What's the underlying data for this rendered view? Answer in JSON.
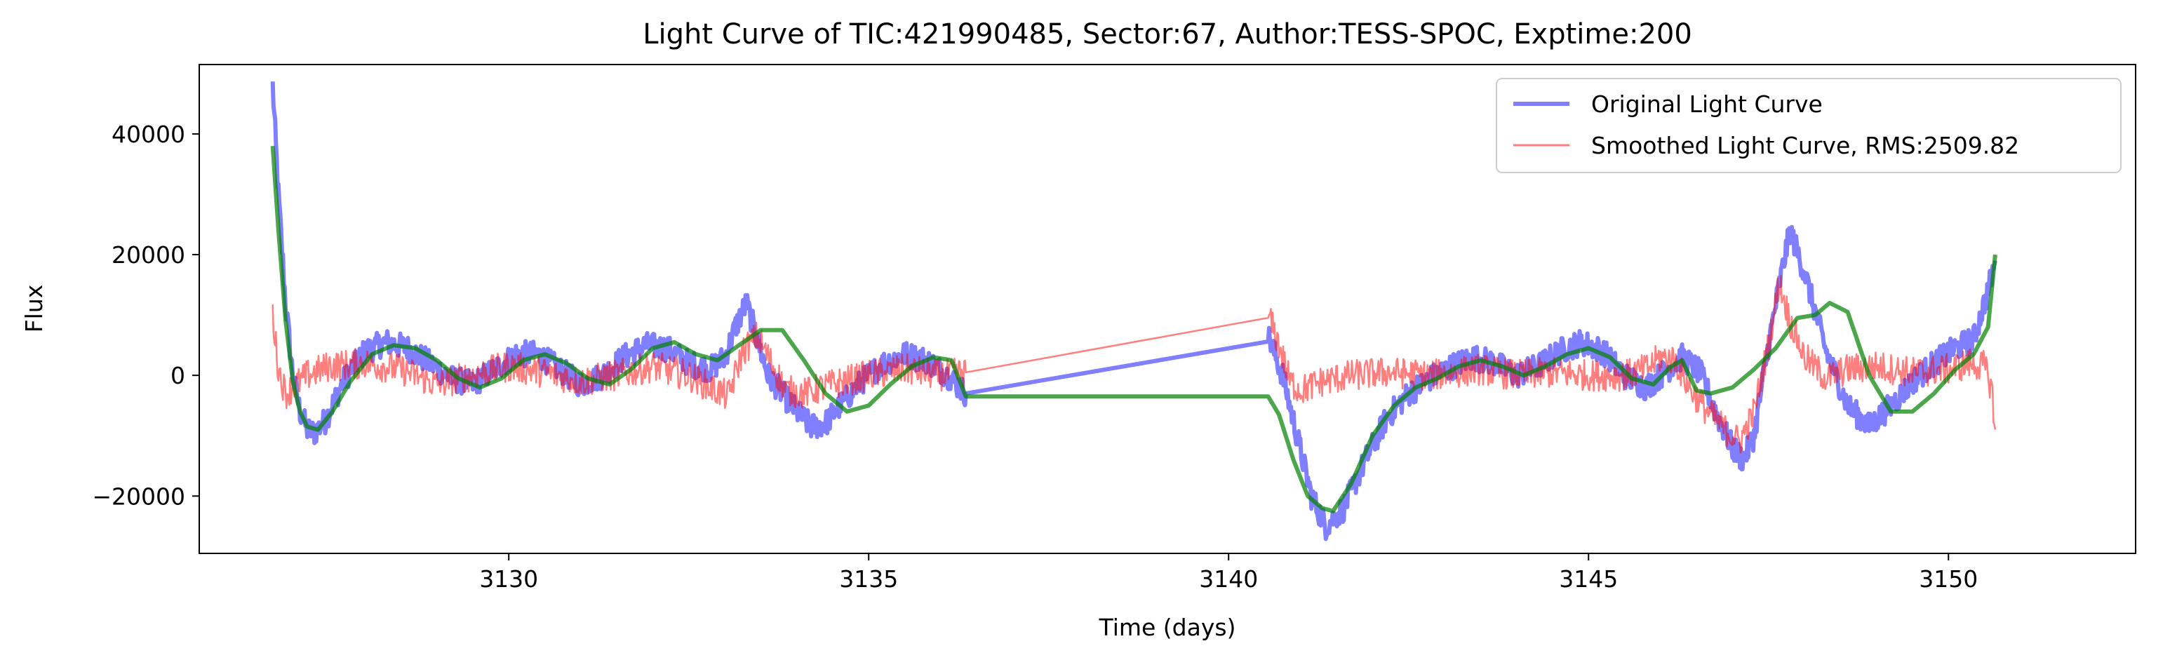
{
  "chart_data": {
    "type": "line",
    "title": "Light Curve of TIC:421990485, Sector:67, Author:TESS-SPOC, Exptime:200",
    "xlabel": "Time (days)",
    "ylabel": "Flux",
    "xlim": [
      3125.7,
      3152.6
    ],
    "ylim": [
      -29500,
      51500
    ],
    "xticks": [
      3130,
      3135,
      3140,
      3145,
      3150
    ],
    "yticks": [
      -20000,
      0,
      20000,
      40000
    ],
    "ytick_labels": [
      "−20000",
      "0",
      "20000",
      "40000"
    ],
    "grid": false,
    "legend_position": "top-right",
    "series": [
      {
        "name": "Original Light Curve",
        "color": "#0000ff",
        "opacity": 0.5,
        "noise": 2200,
        "x": [
          3126.72,
          3126.8,
          3126.9,
          3127.0,
          3127.1,
          3127.2,
          3127.3,
          3127.45,
          3127.7,
          3128.0,
          3128.3,
          3128.6,
          3128.9,
          3129.2,
          3129.5,
          3129.8,
          3130.1,
          3130.4,
          3130.7,
          3131.0,
          3131.3,
          3131.6,
          3131.9,
          3132.2,
          3132.5,
          3132.8,
          3133.0,
          3133.15,
          3133.3,
          3133.45,
          3133.6,
          3133.8,
          3134.0,
          3134.2,
          3134.4,
          3134.6,
          3134.9,
          3135.2,
          3135.5,
          3135.8,
          3136.1,
          3136.35,
          3140.55,
          3140.75,
          3140.95,
          3141.15,
          3141.35,
          3141.6,
          3141.9,
          3142.2,
          3142.5,
          3142.8,
          3143.1,
          3143.4,
          3143.7,
          3144.0,
          3144.3,
          3144.6,
          3144.9,
          3145.2,
          3145.5,
          3145.8,
          3146.1,
          3146.3,
          3146.55,
          3146.8,
          3147.0,
          3147.15,
          3147.3,
          3147.5,
          3147.65,
          3147.8,
          3148.0,
          3148.3,
          3148.6,
          3148.9,
          3149.2,
          3149.5,
          3149.8,
          3150.1,
          3150.35,
          3150.55,
          3150.65
        ],
        "y": [
          48000,
          30000,
          12000,
          0,
          -6000,
          -9000,
          -9500,
          -7500,
          -1000,
          4000,
          5500,
          4500,
          2000,
          -500,
          -1500,
          1000,
          3500,
          3500,
          1000,
          -1500,
          0,
          3000,
          5000,
          4500,
          2000,
          1000,
          3000,
          8000,
          12000,
          6000,
          0,
          -3000,
          -6000,
          -8500,
          -8000,
          -5000,
          -1000,
          2000,
          3500,
          2500,
          0,
          -3000,
          6500,
          0,
          -10000,
          -20000,
          -25000,
          -22000,
          -14000,
          -7000,
          -3000,
          -500,
          1500,
          3000,
          2000,
          0,
          1500,
          4000,
          5500,
          4000,
          0,
          -2000,
          1000,
          3000,
          500,
          -7000,
          -12000,
          -14000,
          -10000,
          5000,
          15000,
          24000,
          17000,
          4000,
          -5000,
          -8500,
          -5000,
          -1000,
          2000,
          4500,
          6000,
          14000,
          19000
        ]
      },
      {
        "name": "Smoothed Light Curve, RMS:2509.82",
        "color": "#ff0000",
        "opacity": 0.5,
        "noise": 2600,
        "x": [
          3126.72,
          3126.8,
          3126.9,
          3127.0,
          3127.2,
          3127.5,
          3128.0,
          3128.5,
          3129.0,
          3129.5,
          3130.0,
          3130.5,
          3131.0,
          3131.5,
          3132.0,
          3132.5,
          3132.8,
          3133.05,
          3133.25,
          3133.45,
          3133.65,
          3133.85,
          3134.1,
          3134.5,
          3135.0,
          3135.5,
          3136.0,
          3136.35,
          3140.55,
          3140.7,
          3140.85,
          3141.0,
          3141.3,
          3141.7,
          3142.2,
          3142.8,
          3143.5,
          3144.0,
          3144.5,
          3145.0,
          3145.5,
          3145.8,
          3146.0,
          3146.2,
          3146.4,
          3146.65,
          3146.9,
          3147.1,
          3147.3,
          3147.5,
          3147.65,
          3147.8,
          3148.0,
          3148.3,
          3148.6,
          3149.0,
          3149.5,
          3150.0,
          3150.3,
          3150.5,
          3150.6,
          3150.65
        ],
        "y": [
          10000,
          1000,
          -3000,
          -2000,
          0,
          1500,
          2000,
          1000,
          -1500,
          0,
          1500,
          500,
          -1000,
          0,
          1500,
          0,
          -2000,
          -3500,
          4000,
          6500,
          2000,
          -2500,
          -3000,
          -1500,
          0,
          1000,
          0,
          500,
          10000,
          5000,
          -1000,
          -2500,
          -1000,
          0,
          500,
          0,
          1000,
          0,
          500,
          0,
          0,
          1000,
          3000,
          2500,
          -2000,
          -6000,
          -9000,
          -11000,
          -6000,
          5000,
          15500,
          9000,
          3000,
          -500,
          1000,
          1500,
          500,
          1000,
          2000,
          1500,
          -2000,
          -9000
        ]
      },
      {
        "name": "",
        "color": "#008000",
        "opacity": 0.7,
        "noise": 0,
        "x": [
          3126.72,
          3126.8,
          3126.9,
          3127.0,
          3127.1,
          3127.2,
          3127.35,
          3127.55,
          3127.8,
          3128.1,
          3128.4,
          3128.7,
          3129.0,
          3129.3,
          3129.6,
          3129.9,
          3130.2,
          3130.5,
          3130.8,
          3131.1,
          3131.4,
          3131.7,
          3132.0,
          3132.3,
          3132.6,
          3132.9,
          3133.2,
          3133.5,
          3133.8,
          3134.1,
          3134.4,
          3134.7,
          3135.0,
          3135.3,
          3135.6,
          3135.9,
          3136.15,
          3136.35,
          3140.55,
          3140.7,
          3140.9,
          3141.1,
          3141.3,
          3141.45,
          3141.7,
          3142.0,
          3142.3,
          3142.6,
          3142.9,
          3143.2,
          3143.5,
          3143.8,
          3144.1,
          3144.4,
          3144.7,
          3145.0,
          3145.3,
          3145.6,
          3145.9,
          3146.15,
          3146.3,
          3146.5,
          3146.7,
          3147.0,
          3147.3,
          3147.6,
          3147.9,
          3148.15,
          3148.35,
          3148.6,
          3148.9,
          3149.2,
          3149.5,
          3149.8,
          3150.1,
          3150.35,
          3150.55,
          3150.65
        ],
        "y": [
          38000,
          24000,
          9000,
          -1000,
          -6000,
          -8500,
          -9000,
          -6000,
          -1000,
          3500,
          5000,
          4500,
          2500,
          -500,
          -2000,
          -500,
          2500,
          3500,
          2000,
          -500,
          -1500,
          1000,
          4500,
          5500,
          3500,
          2500,
          5000,
          7500,
          7500,
          2500,
          -3000,
          -6000,
          -5000,
          -1500,
          1500,
          3000,
          2500,
          -3500,
          -3500,
          -6500,
          -14000,
          -20000,
          -22000,
          -22500,
          -18000,
          -10000,
          -5000,
          -2000,
          -500,
          1500,
          2500,
          1500,
          0,
          1500,
          3500,
          4500,
          3000,
          -500,
          -1500,
          1500,
          2500,
          -2500,
          -3000,
          -2000,
          1000,
          4500,
          9500,
          10000,
          12000,
          10500,
          0,
          -6000,
          -6000,
          -3000,
          1000,
          3500,
          8000,
          20000
        ]
      }
    ]
  }
}
